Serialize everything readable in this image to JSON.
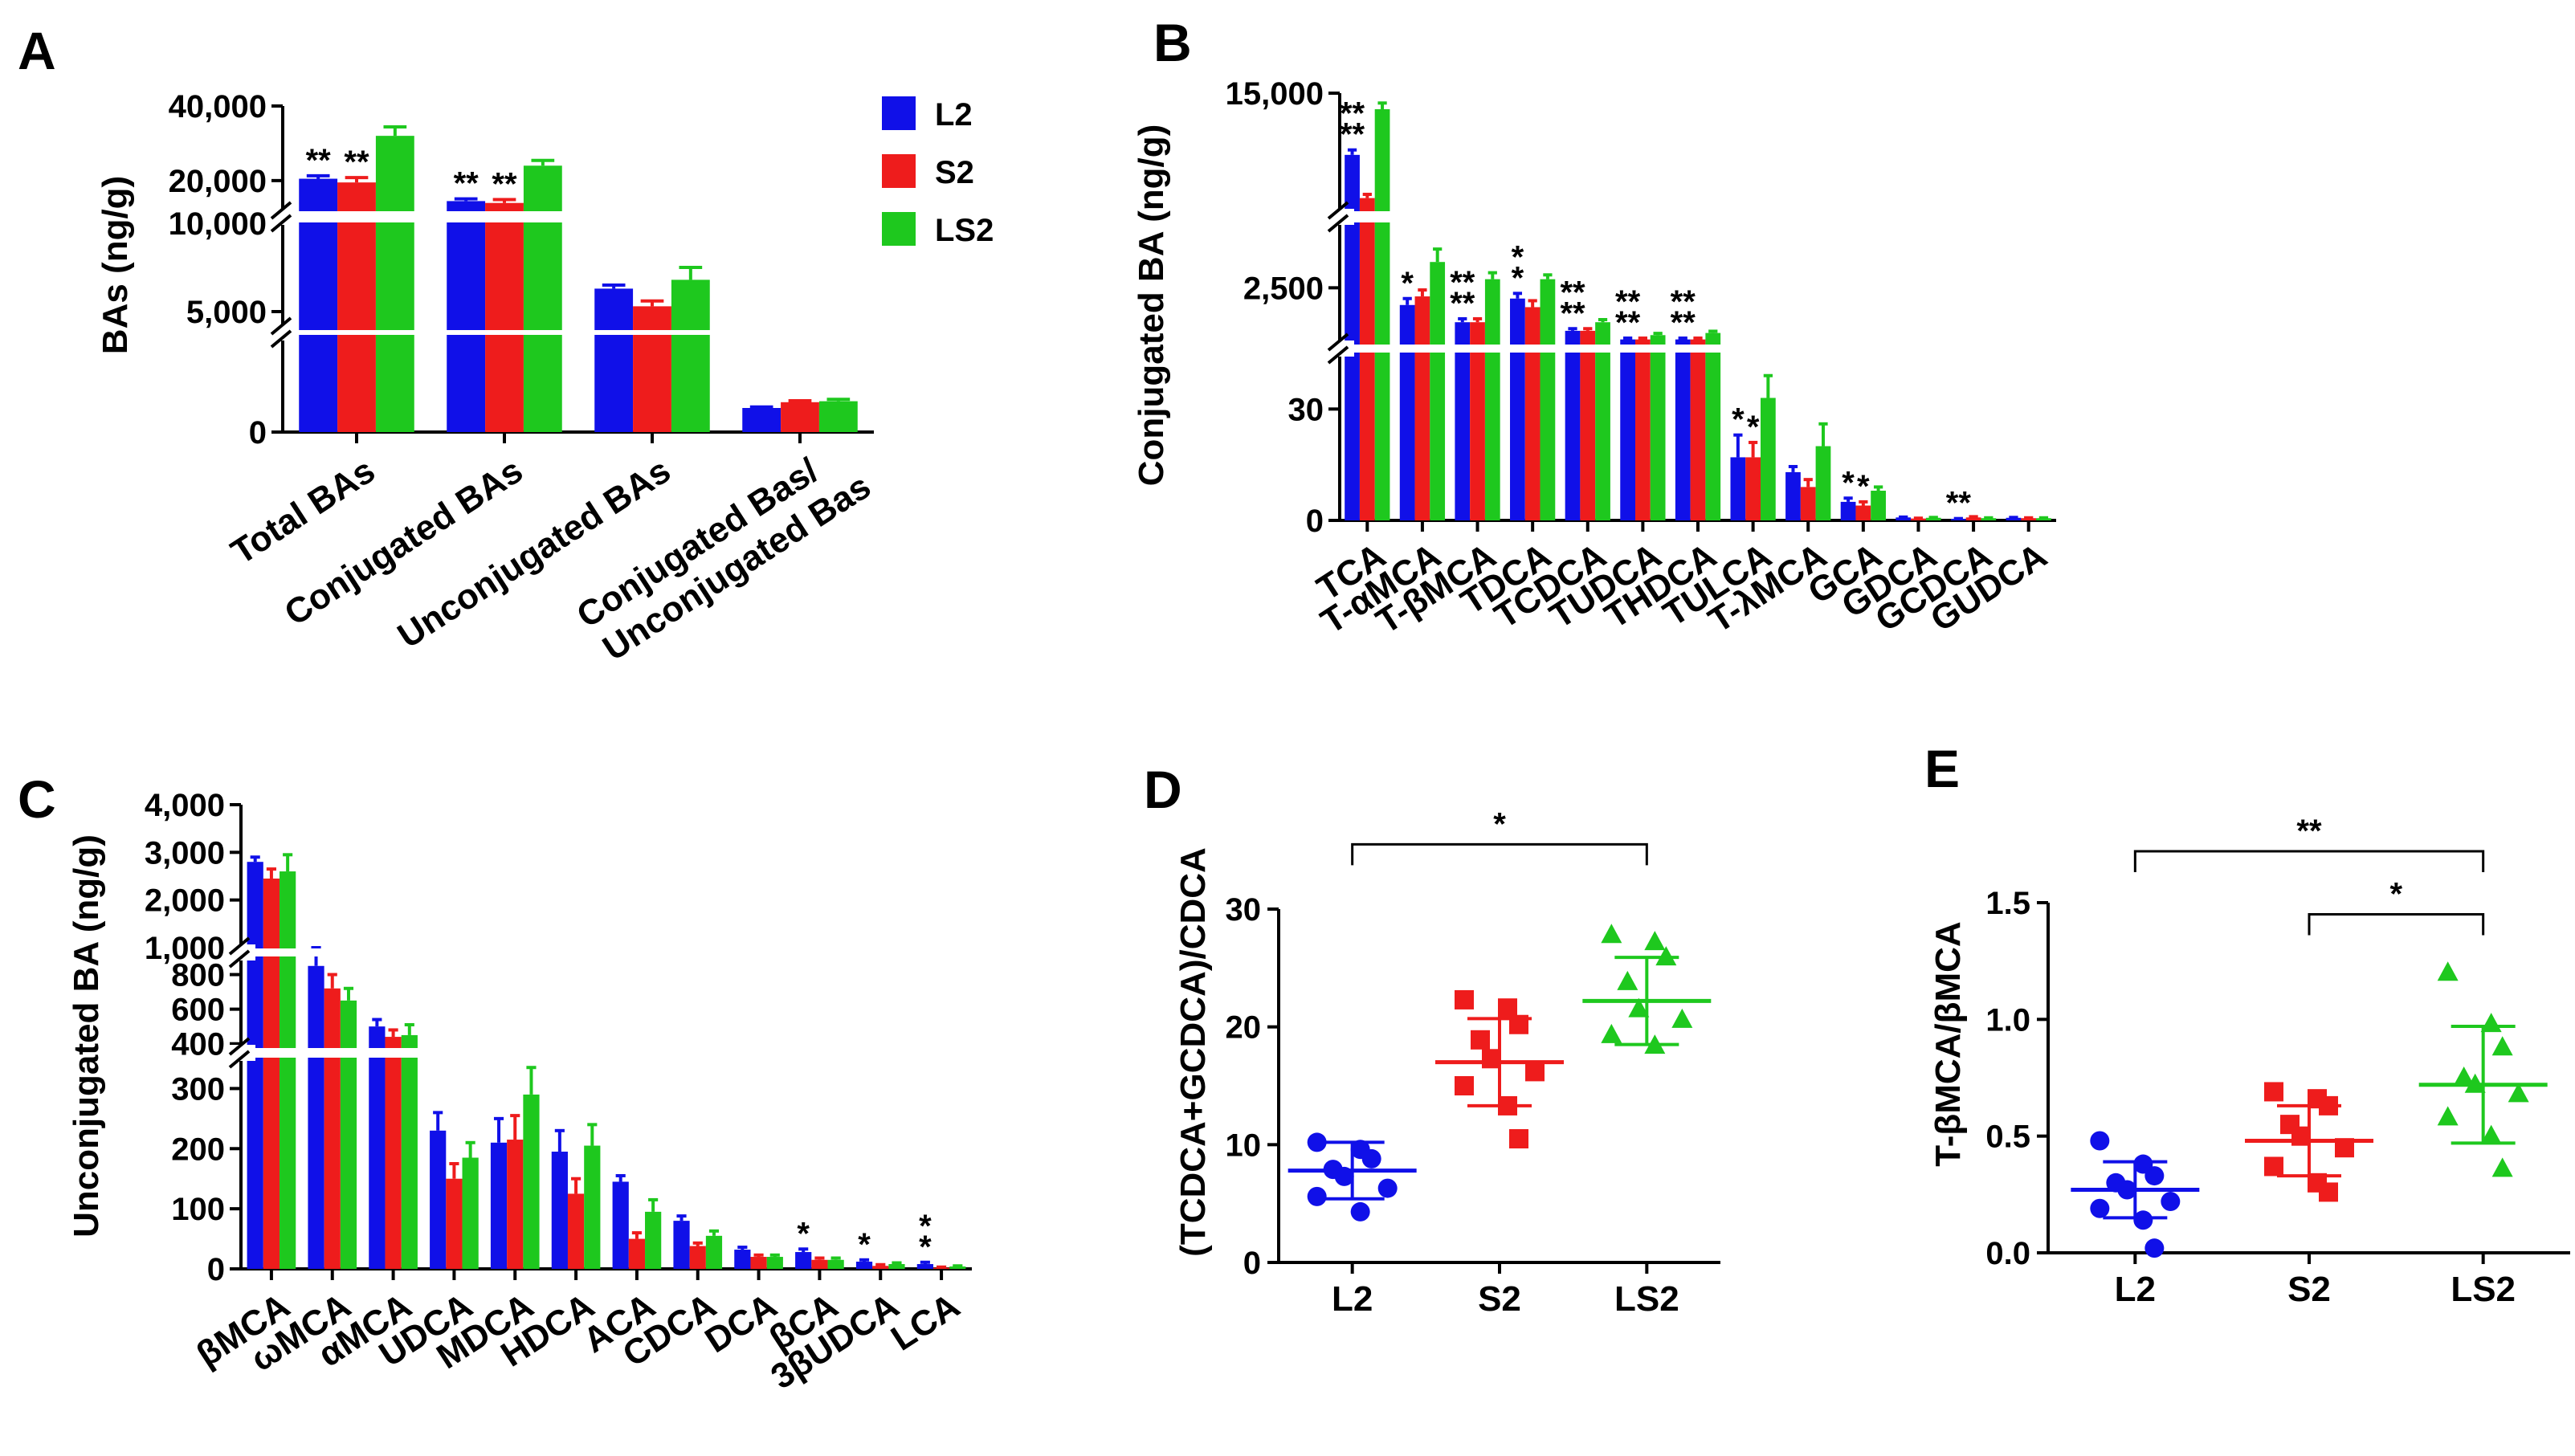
{
  "colors": {
    "L2": "#1010e8",
    "S2": "#ee1c1c",
    "LS2": "#1ec81e",
    "axis": "#000000"
  },
  "legend": [
    "L2",
    "S2",
    "LS2"
  ],
  "chart_data": [
    {
      "id": "A",
      "panel_label": "A",
      "type": "bar",
      "ylabel": "BAs (ng/g)",
      "categories": [
        "Total BAs",
        "Conjugated BAs",
        "Unconjugated BAs",
        "Conjugated Bas/ Unconjugated Bas"
      ],
      "category_lines": [
        [
          "Total BAs"
        ],
        [
          "Conjugated BAs"
        ],
        [
          "Unconjugated BAs"
        ],
        [
          "Conjugated Bas/",
          "Unconjugated Bas"
        ]
      ],
      "series": [
        {
          "name": "L2",
          "values": [
            20500,
            14500,
            6300,
            2.5
          ],
          "errors": [
            800,
            600,
            200,
            0.1
          ]
        },
        {
          "name": "S2",
          "values": [
            19500,
            14000,
            5300,
            3.1
          ],
          "errors": [
            1300,
            900,
            300,
            0.15
          ]
        },
        {
          "name": "LS2",
          "values": [
            32000,
            24000,
            6800,
            3.2
          ],
          "errors": [
            2400,
            1400,
            700,
            0.2
          ]
        }
      ],
      "segments": [
        {
          "range": [
            0,
            10
          ],
          "ticks": [
            {
              "v": 0,
              "label": "0"
            }
          ]
        },
        {
          "range": [
            4000,
            10000
          ],
          "ticks": [
            {
              "v": 5000,
              "label": "5,000"
            },
            {
              "v": 10000,
              "label": "10,000"
            }
          ]
        },
        {
          "range": [
            12000,
            40000
          ],
          "ticks": [
            {
              "v": 20000,
              "label": "20,000"
            },
            {
              "v": 40000,
              "label": "40,000"
            }
          ]
        }
      ],
      "annotations": [
        {
          "cat": 0,
          "series": 0,
          "text": "**"
        },
        {
          "cat": 0,
          "series": 1,
          "text": "**"
        },
        {
          "cat": 1,
          "series": 0,
          "text": "**"
        },
        {
          "cat": 1,
          "series": 1,
          "text": "**"
        }
      ]
    },
    {
      "id": "B",
      "panel_label": "B",
      "type": "bar",
      "ylabel": "Conjugated BA (ng/g)",
      "categories": [
        "TCA",
        "T-αMCA",
        "T-βMCA",
        "TDCA",
        "TCDCA",
        "TUDCA",
        "THDCA",
        "TULCA",
        "T-λMCA",
        "GCA",
        "GDCA",
        "GCDCA",
        "GUDCA"
      ],
      "series": [
        {
          "name": "L2",
          "values": [
            10000,
            2100,
            1700,
            2250,
            1500,
            1300,
            1300,
            17,
            13,
            5,
            0.8,
            0.4,
            0.7
          ],
          "errors": [
            400,
            150,
            80,
            120,
            50,
            30,
            30,
            6,
            1.5,
            1,
            0.1,
            0.1,
            0.1
          ]
        },
        {
          "name": "S2",
          "values": [
            6500,
            2300,
            1700,
            2050,
            1500,
            1300,
            1300,
            17,
            9,
            4,
            0.5,
            0.8,
            0.6
          ],
          "errors": [
            300,
            150,
            80,
            150,
            50,
            30,
            30,
            4,
            2,
            1,
            0.1,
            0.2,
            0.1
          ]
        },
        {
          "name": "LS2",
          "values": [
            13700,
            3100,
            2700,
            2700,
            1700,
            1400,
            1450,
            33,
            20,
            8,
            0.7,
            0.6,
            0.6
          ],
          "errors": [
            500,
            300,
            150,
            100,
            60,
            40,
            40,
            6,
            6,
            1,
            0.1,
            0.1,
            0.1
          ]
        }
      ],
      "segments": [
        {
          "range": [
            0,
            45
          ],
          "ticks": [
            {
              "v": 0,
              "label": "0"
            },
            {
              "v": 30,
              "label": "30"
            }
          ]
        },
        {
          "range": [
            1200,
            4000
          ],
          "ticks": [
            {
              "v": 2500,
              "label": "2,500"
            }
          ]
        },
        {
          "range": [
            5500,
            15000
          ],
          "ticks": [
            {
              "v": 15000,
              "label": "15,000"
            }
          ]
        }
      ],
      "annotations": [
        {
          "cat": 0,
          "series": 0,
          "text": "**",
          "lines": 2
        },
        {
          "cat": 1,
          "series": 0,
          "text": "*"
        },
        {
          "cat": 2,
          "series": 0,
          "text": "**",
          "lines": 2
        },
        {
          "cat": 3,
          "series": 0,
          "text": "*",
          "lines": 2
        },
        {
          "cat": 4,
          "series": 0,
          "text": "**",
          "lines": 2
        },
        {
          "cat": 5,
          "series": 0,
          "text": "**",
          "lines": 2
        },
        {
          "cat": 6,
          "series": 0,
          "text": "**",
          "lines": 2
        },
        {
          "cat": 7,
          "series": 0,
          "text": "*"
        },
        {
          "cat": 7,
          "series": 1,
          "text": "*"
        },
        {
          "cat": 9,
          "series": 0,
          "text": "*"
        },
        {
          "cat": 9,
          "series": 1,
          "text": "*"
        },
        {
          "cat": 11,
          "series": 0,
          "text": "**"
        }
      ]
    },
    {
      "id": "C",
      "panel_label": "C",
      "type": "bar",
      "ylabel": "Unconjugated BA (ng/g)",
      "categories": [
        "βMCA",
        "ωMCA",
        "αMCA",
        "UDCA",
        "MDCA",
        "HDCA",
        "ACA",
        "CDCA",
        "DCA",
        "βCA",
        "3βUDCA",
        "LCA"
      ],
      "series": [
        {
          "name": "L2",
          "values": [
            2800,
            850,
            500,
            230,
            210,
            195,
            145,
            80,
            32,
            28,
            12,
            8
          ],
          "errors": [
            100,
            60,
            40,
            30,
            40,
            35,
            10,
            8,
            4,
            5,
            3,
            3
          ]
        },
        {
          "name": "S2",
          "values": [
            2450,
            720,
            440,
            150,
            215,
            125,
            50,
            38,
            20,
            15,
            5,
            2
          ],
          "errors": [
            200,
            80,
            40,
            25,
            40,
            25,
            10,
            5,
            3,
            3,
            2,
            1
          ]
        },
        {
          "name": "LS2",
          "values": [
            2600,
            650,
            450,
            185,
            290,
            205,
            95,
            55,
            20,
            15,
            8,
            4
          ],
          "errors": [
            350,
            70,
            60,
            25,
            45,
            35,
            20,
            8,
            3,
            3,
            2,
            1
          ]
        }
      ],
      "segments": [
        {
          "range": [
            0,
            350
          ],
          "ticks": [
            {
              "v": 0,
              "label": "0"
            },
            {
              "v": 100,
              "label": "100"
            },
            {
              "v": 200,
              "label": "200"
            },
            {
              "v": 300,
              "label": "300"
            }
          ]
        },
        {
          "range": [
            380,
            900
          ],
          "ticks": [
            {
              "v": 400,
              "label": "400"
            },
            {
              "v": 600,
              "label": "600"
            },
            {
              "v": 800,
              "label": "800"
            }
          ]
        },
        {
          "range": [
            1000,
            4000
          ],
          "ticks": [
            {
              "v": 1000,
              "label": "1,000"
            },
            {
              "v": 2000,
              "label": "2,000"
            },
            {
              "v": 3000,
              "label": "3,000"
            },
            {
              "v": 4000,
              "label": "4,000"
            }
          ]
        }
      ],
      "annotations": [
        {
          "cat": 9,
          "series": 0,
          "text": "*"
        },
        {
          "cat": 10,
          "series": 0,
          "text": "*"
        },
        {
          "cat": 11,
          "series": 0,
          "text": "*",
          "lines": 2
        }
      ]
    },
    {
      "id": "D",
      "panel_label": "D",
      "type": "scatter",
      "ylabel": "(TCDCA+GCDCA)/CDCA",
      "categories": [
        "L2",
        "S2",
        "LS2"
      ],
      "ylim": [
        0,
        30
      ],
      "yticks": [
        0,
        10,
        20,
        30
      ],
      "markers": [
        "circle",
        "square",
        "triangle"
      ],
      "groups": [
        {
          "name": "L2",
          "mean": 7.8,
          "sd": 2.4,
          "points": [
            10.2,
            9.6,
            8.8,
            7.9,
            7.3,
            6.3,
            5.6,
            4.3
          ]
        },
        {
          "name": "S2",
          "mean": 17.0,
          "sd": 3.7,
          "points": [
            22.3,
            21.6,
            20.2,
            18.9,
            17.3,
            16.2,
            15.0,
            13.3,
            10.5
          ]
        },
        {
          "name": "LS2",
          "mean": 22.2,
          "sd": 3.7,
          "points": [
            27.8,
            27.2,
            25.9,
            23.8,
            21.5,
            20.6,
            19.3,
            18.4
          ]
        }
      ],
      "brackets": [
        {
          "from": 0,
          "to": 2,
          "text": "*",
          "y": 35.5
        }
      ]
    },
    {
      "id": "E",
      "panel_label": "E",
      "type": "scatter",
      "ylabel": "T-βMCA/βMCA",
      "categories": [
        "L2",
        "S2",
        "LS2"
      ],
      "ylim": [
        0,
        1.5
      ],
      "yticks": [
        0.0,
        0.5,
        1.0,
        1.5
      ],
      "ytick_labels": [
        "0.0",
        "0.5",
        "1.0",
        "1.5"
      ],
      "markers": [
        "circle",
        "square",
        "triangle"
      ],
      "groups": [
        {
          "name": "L2",
          "mean": 0.27,
          "sd": 0.12,
          "points": [
            0.48,
            0.38,
            0.33,
            0.3,
            0.27,
            0.22,
            0.19,
            0.14,
            0.02
          ]
        },
        {
          "name": "S2",
          "mean": 0.48,
          "sd": 0.15,
          "points": [
            0.69,
            0.66,
            0.63,
            0.55,
            0.5,
            0.45,
            0.37,
            0.3,
            0.26
          ]
        },
        {
          "name": "LS2",
          "mean": 0.72,
          "sd": 0.25,
          "points": [
            1.2,
            0.98,
            0.88,
            0.75,
            0.72,
            0.68,
            0.58,
            0.5,
            0.36
          ]
        }
      ],
      "brackets": [
        {
          "from": 0,
          "to": 2,
          "text": "**",
          "y": 1.72
        },
        {
          "from": 1,
          "to": 2,
          "text": "*",
          "y": 1.45
        }
      ]
    }
  ]
}
